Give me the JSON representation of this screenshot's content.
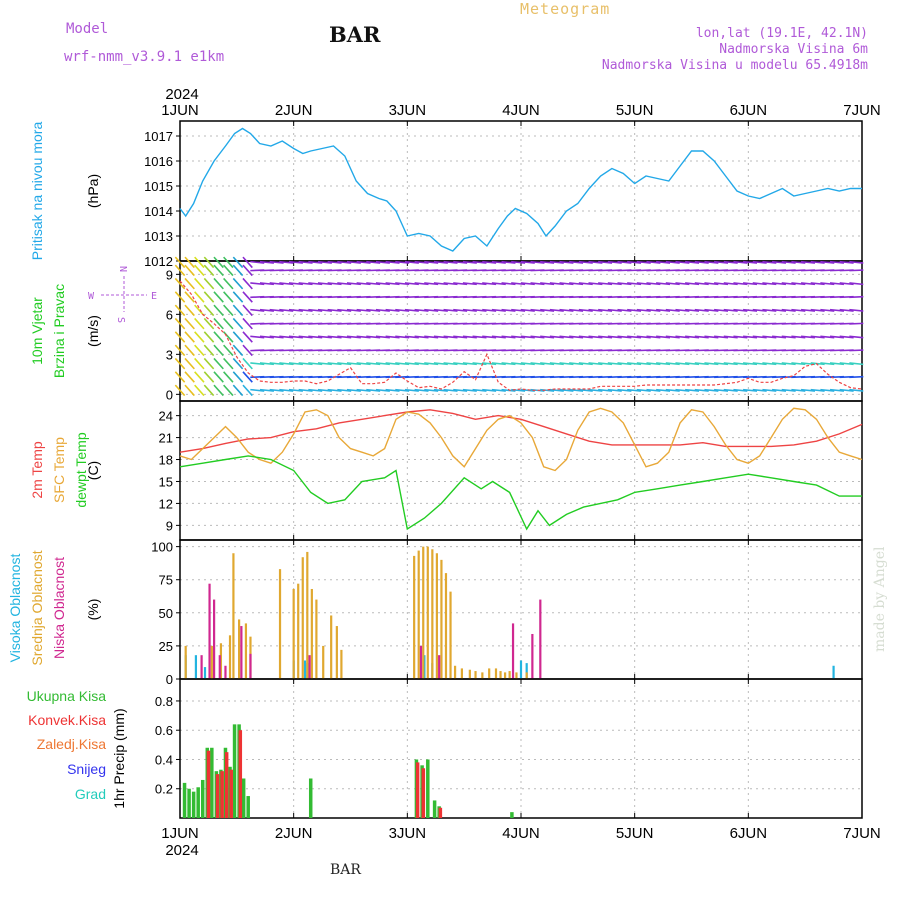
{
  "header": {
    "station": "BAR",
    "product": "Meteogram",
    "model_label": "Model",
    "model_name": "wrf-nmm_v3.9.1 e1km",
    "location_coords": "lon,lat (19.1E, 42.1N)",
    "elevation": "Nadmorska Visina 6m",
    "model_elevation": "Nadmorska Visina u modelu 65.4918m",
    "year_top": "2024",
    "year_bottom": "2024",
    "footer_station": "BAR",
    "watermark": "made by Angel"
  },
  "colors": {
    "pressure": "#22a8e8",
    "temp2m": "#ee4444",
    "sfc": "#e8a838",
    "dew": "#22cc22",
    "high_cloud": "#22b4e0",
    "mid_cloud": "#e0a830",
    "low_cloud": "#d02890",
    "total_precip": "#33bb33",
    "conv_precip": "#ee3333",
    "frz_precip": "#ee7733",
    "snow": "#3333ee",
    "graupel": "#22ccbb",
    "label_purple": "#b05ad8",
    "grid": "#bbbbbb"
  },
  "chart_data": [
    {
      "type": "line",
      "panel": "pressure",
      "title_lines": [
        "Pritisak na nivou mora"
      ],
      "ylabel": "(hPa)",
      "ylim": [
        1012,
        1017.6
      ],
      "yticks": [
        1012,
        1013,
        1014,
        1015,
        1016,
        1017
      ],
      "x_unit": "days since 1JUN 00UTC",
      "xticks": [
        "1JUN",
        "2JUN",
        "3JUN",
        "4JUN",
        "5JUN",
        "6JUN",
        "7JUN"
      ],
      "grid": true,
      "series": [
        {
          "name": "Pritisak na nivou mora",
          "color_key": "pressure",
          "x": [
            0,
            0.05,
            0.12,
            0.2,
            0.3,
            0.4,
            0.48,
            0.55,
            0.62,
            0.7,
            0.8,
            0.9,
            1.0,
            1.08,
            1.15,
            1.25,
            1.35,
            1.45,
            1.55,
            1.65,
            1.75,
            1.82,
            1.9,
            2.0,
            2.1,
            2.2,
            2.3,
            2.4,
            2.5,
            2.6,
            2.7,
            2.8,
            2.88,
            2.95,
            3.05,
            3.15,
            3.22,
            3.3,
            3.4,
            3.5,
            3.6,
            3.7,
            3.8,
            3.9,
            4.0,
            4.1,
            4.2,
            4.3,
            4.4,
            4.5,
            4.6,
            4.7,
            4.8,
            4.9,
            5.0,
            5.1,
            5.2,
            5.3,
            5.4,
            5.5,
            5.6,
            5.7,
            5.8,
            5.9,
            6.0
          ],
          "y": [
            1014.1,
            1013.8,
            1014.3,
            1015.2,
            1016.0,
            1016.6,
            1017.1,
            1017.3,
            1017.1,
            1016.7,
            1016.6,
            1016.8,
            1016.5,
            1016.3,
            1016.4,
            1016.5,
            1016.6,
            1016.2,
            1015.2,
            1014.7,
            1014.5,
            1014.4,
            1014.0,
            1013.0,
            1013.1,
            1013.0,
            1012.6,
            1012.4,
            1012.9,
            1013.0,
            1012.6,
            1013.3,
            1013.8,
            1014.1,
            1013.9,
            1013.5,
            1013.0,
            1013.4,
            1014.0,
            1014.3,
            1014.9,
            1015.4,
            1015.7,
            1015.5,
            1015.1,
            1015.4,
            1015.3,
            1015.2,
            1015.8,
            1016.4,
            1016.4,
            1016.0,
            1015.4,
            1014.8,
            1014.6,
            1014.5,
            1014.7,
            1014.9,
            1014.6,
            1014.7,
            1014.8,
            1014.9,
            1014.8,
            1014.9,
            1014.9
          ]
        }
      ]
    },
    {
      "type": "wind_barbs",
      "panel": "wind",
      "title_lines": [
        "10m Vjetar",
        "Brzina i Pravac"
      ],
      "ylabel": "(m/s)",
      "compass": {
        "n": "N",
        "s": "S",
        "e": "E",
        "w": "W"
      },
      "ylim": [
        -0.5,
        10
      ],
      "yticks": [
        0,
        3,
        6,
        9
      ],
      "xticks": [
        "1JUN",
        "2JUN",
        "3JUN",
        "4JUN",
        "5JUN",
        "6JUN",
        "7JUN"
      ],
      "grid": true,
      "series": [
        {
          "name": "10m wind speed",
          "color": "#ee4444",
          "x": [
            0,
            0.1,
            0.2,
            0.3,
            0.4,
            0.5,
            0.6,
            0.7,
            0.8,
            0.9,
            1.0,
            1.1,
            1.2,
            1.3,
            1.4,
            1.5,
            1.6,
            1.7,
            1.8,
            1.9,
            2.0,
            2.1,
            2.2,
            2.3,
            2.4,
            2.5,
            2.6,
            2.7,
            2.8,
            2.9,
            3.0,
            3.1,
            3.2,
            3.3,
            3.4,
            3.5,
            3.6,
            3.7,
            3.8,
            3.9,
            4.0,
            4.1,
            4.2,
            4.3,
            4.4,
            4.5,
            4.6,
            4.7,
            4.8,
            4.9,
            5.0,
            5.1,
            5.2,
            5.3,
            5.4,
            5.5,
            5.6,
            5.7,
            5.8,
            5.9,
            6.0
          ],
          "y": [
            8.5,
            7.5,
            6.0,
            5.3,
            4.5,
            2.8,
            1.6,
            1.0,
            0.9,
            0.9,
            1.0,
            1.0,
            0.8,
            1.0,
            1.5,
            2.0,
            0.8,
            0.8,
            0.9,
            1.6,
            1.0,
            0.5,
            0.6,
            0.4,
            0.9,
            1.7,
            1.1,
            3.0,
            0.9,
            0.3,
            0.4,
            0.3,
            0.3,
            0.4,
            0.4,
            0.4,
            0.4,
            0.6,
            0.6,
            0.6,
            0.6,
            0.7,
            0.7,
            0.7,
            0.7,
            0.7,
            0.7,
            0.7,
            0.8,
            0.9,
            1.2,
            0.9,
            0.9,
            1.2,
            1.4,
            2.1,
            2.3,
            1.5,
            0.9,
            0.5,
            0.4
          ]
        }
      ]
    },
    {
      "type": "line",
      "panel": "temperature",
      "title_lines": [
        "2m Temp",
        "SFC Temp",
        "dewpt Temp"
      ],
      "ylabel": "(C)",
      "ylim": [
        7,
        26
      ],
      "yticks": [
        9,
        12,
        15,
        18,
        21,
        24
      ],
      "xticks": [
        "1JUN",
        "2JUN",
        "3JUN",
        "4JUN",
        "5JUN",
        "6JUN",
        "7JUN"
      ],
      "grid": true,
      "series": [
        {
          "name": "2m Temp",
          "color_key": "temp2m",
          "x": [
            0,
            0.2,
            0.4,
            0.6,
            0.8,
            1.0,
            1.2,
            1.4,
            1.6,
            1.8,
            2.0,
            2.2,
            2.4,
            2.6,
            2.8,
            3.0,
            3.2,
            3.4,
            3.6,
            3.8,
            4.0,
            4.2,
            4.4,
            4.6,
            4.8,
            5.0,
            5.2,
            5.4,
            5.6,
            5.8,
            6.0
          ],
          "y": [
            19.0,
            19.5,
            20.2,
            20.8,
            21.0,
            21.8,
            22.2,
            23.0,
            23.5,
            24.0,
            24.5,
            24.8,
            24.3,
            23.5,
            24.0,
            23.5,
            22.5,
            21.5,
            20.5,
            20.0,
            20.0,
            20.0,
            20.0,
            20.3,
            19.8,
            19.8,
            19.8,
            20.0,
            20.5,
            21.5,
            22.8
          ]
        },
        {
          "name": "SFC Temp",
          "color_key": "sfc",
          "x": [
            0,
            0.1,
            0.2,
            0.3,
            0.4,
            0.5,
            0.6,
            0.7,
            0.8,
            0.9,
            1.0,
            1.1,
            1.2,
            1.3,
            1.4,
            1.5,
            1.6,
            1.7,
            1.8,
            1.9,
            2.0,
            2.1,
            2.2,
            2.3,
            2.4,
            2.5,
            2.6,
            2.7,
            2.8,
            2.9,
            3.0,
            3.1,
            3.2,
            3.3,
            3.4,
            3.5,
            3.6,
            3.7,
            3.8,
            3.9,
            4.0,
            4.1,
            4.2,
            4.3,
            4.4,
            4.5,
            4.6,
            4.7,
            4.8,
            4.9,
            5.0,
            5.1,
            5.2,
            5.3,
            5.4,
            5.5,
            5.6,
            5.7,
            5.8,
            5.9,
            6.0
          ],
          "y": [
            18.5,
            18.0,
            19.5,
            21.0,
            22.5,
            21.0,
            19.0,
            18.0,
            17.5,
            19.0,
            21.5,
            24.5,
            24.8,
            24.0,
            21.0,
            19.5,
            19.0,
            18.5,
            19.5,
            23.5,
            24.5,
            24.2,
            23.0,
            21.0,
            18.5,
            17.0,
            19.5,
            22.0,
            23.5,
            24.0,
            23.0,
            21.0,
            17.0,
            16.5,
            18.0,
            22.0,
            24.5,
            25.0,
            24.5,
            23.0,
            20.0,
            17.0,
            17.5,
            19.0,
            23.0,
            24.8,
            24.5,
            22.5,
            20.0,
            18.0,
            17.5,
            18.5,
            21.0,
            23.5,
            25.0,
            24.8,
            23.5,
            21.0,
            19.0,
            18.5,
            18.0
          ]
        },
        {
          "name": "dewpt Temp",
          "color_key": "dew",
          "x": [
            0,
            0.2,
            0.4,
            0.6,
            0.8,
            1.0,
            1.15,
            1.3,
            1.45,
            1.6,
            1.8,
            1.9,
            2.0,
            2.15,
            2.3,
            2.5,
            2.65,
            2.75,
            2.9,
            3.05,
            3.15,
            3.25,
            3.4,
            3.55,
            3.7,
            3.85,
            4.0,
            4.2,
            4.4,
            4.6,
            4.8,
            5.0,
            5.2,
            5.4,
            5.6,
            5.8,
            6.0
          ],
          "y": [
            17.0,
            17.5,
            18.0,
            18.5,
            18.0,
            16.5,
            13.5,
            12.0,
            12.5,
            15.0,
            15.5,
            16.5,
            8.5,
            10.0,
            12.0,
            15.5,
            14.0,
            15.0,
            13.5,
            8.5,
            11.0,
            9.0,
            10.5,
            11.5,
            12.0,
            12.5,
            13.5,
            14.0,
            14.5,
            15.0,
            15.5,
            16.0,
            15.5,
            15.0,
            14.5,
            13.0,
            13.0
          ]
        }
      ]
    },
    {
      "type": "bar",
      "panel": "cloud",
      "title_lines": [
        "Visoka Oblacnost",
        "Srednja Oblacnost",
        "Niska Oblacnost"
      ],
      "ylabel": "(%)",
      "ylim": [
        0,
        105
      ],
      "yticks": [
        0,
        25,
        50,
        75,
        100
      ],
      "xticks": [
        "1JUN",
        "2JUN",
        "3JUN",
        "4JUN",
        "5JUN",
        "6JUN",
        "7JUN"
      ],
      "grid": true,
      "series": [
        {
          "name": "Visoka Oblacnost",
          "color_key": "high_cloud",
          "x": [
            0.05,
            0.14,
            0.22,
            1.0,
            1.1,
            1.12,
            2.15,
            2.22,
            3.0,
            3.05,
            5.75
          ],
          "y": [
            18,
            18,
            9,
            14,
            14,
            12,
            18,
            12,
            14,
            12,
            10
          ]
        },
        {
          "name": "Srednja Oblacnost",
          "color_key": "mid_cloud",
          "x": [
            0.05,
            0.28,
            0.36,
            0.44,
            0.47,
            0.52,
            0.58,
            0.62,
            0.88,
            1.0,
            1.04,
            1.08,
            1.12,
            1.16,
            1.2,
            1.26,
            1.33,
            1.38,
            1.42,
            2.06,
            2.1,
            2.14,
            2.18,
            2.22,
            2.26,
            2.3,
            2.34,
            2.38,
            2.42,
            2.48,
            2.55,
            2.6,
            2.66,
            2.72,
            2.78,
            2.82,
            2.86,
            2.9,
            2.96,
            3.05
          ],
          "y": [
            25,
            25,
            27,
            33,
            95,
            45,
            42,
            32,
            83,
            68,
            72,
            92,
            96,
            68,
            60,
            25,
            48,
            40,
            22,
            93,
            97,
            100,
            100,
            98,
            95,
            90,
            80,
            66,
            10,
            8,
            7,
            6,
            5,
            8,
            8,
            6,
            5,
            6,
            5,
            5
          ]
        },
        {
          "name": "Niska Oblacnost",
          "color_key": "low_cloud",
          "x": [
            0.19,
            0.26,
            0.3,
            0.35,
            0.4,
            0.54,
            0.62,
            1.14,
            2.12,
            2.28,
            2.93,
            3.1,
            3.17
          ],
          "y": [
            18,
            72,
            60,
            18,
            10,
            40,
            19,
            18,
            25,
            18,
            42,
            34,
            60
          ]
        }
      ]
    },
    {
      "type": "bar",
      "panel": "precip",
      "title_lines": [
        "Ukupna Kisa",
        "Konvek.Kisa",
        "Zaledj.Kisa",
        "Snijeg",
        "Grad"
      ],
      "ylabel": "1hr Precip (mm)",
      "ylim": [
        0,
        0.95
      ],
      "yticks": [
        0.2,
        0.4,
        0.6,
        0.8
      ],
      "xticks": [
        "1JUN",
        "2JUN",
        "3JUN",
        "4JUN",
        "5JUN",
        "6JUN",
        "7JUN"
      ],
      "grid": true,
      "series": [
        {
          "name": "Ukupna Kisa",
          "color_key": "total_precip",
          "x": [
            0.04,
            0.08,
            0.12,
            0.16,
            0.2,
            0.24,
            0.28,
            0.32,
            0.36,
            0.4,
            0.44,
            0.48,
            0.52,
            0.56,
            0.6,
            1.15,
            2.08,
            2.13,
            2.18,
            2.24,
            2.28,
            2.92
          ],
          "y": [
            0.24,
            0.2,
            0.18,
            0.21,
            0.26,
            0.48,
            0.48,
            0.32,
            0.33,
            0.48,
            0.35,
            0.64,
            0.64,
            0.27,
            0.15,
            0.27,
            0.4,
            0.36,
            0.4,
            0.12,
            0.08,
            0.04
          ]
        },
        {
          "name": "Konvek.Kisa",
          "color_key": "conv_precip",
          "x": [
            0.24,
            0.32,
            0.36,
            0.4,
            0.44,
            0.52,
            2.08,
            2.13,
            2.28
          ],
          "y": [
            0.46,
            0.3,
            0.32,
            0.45,
            0.33,
            0.6,
            0.38,
            0.34,
            0.07
          ]
        }
      ]
    }
  ]
}
